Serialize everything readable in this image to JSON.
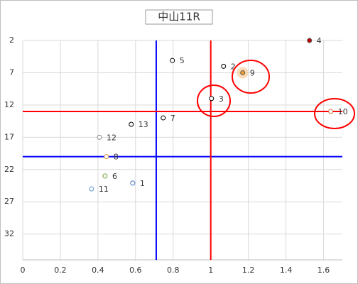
{
  "chart_data": {
    "type": "scatter",
    "title": "中山11R",
    "x": [
      1.525,
      0.796,
      1.068,
      1.17,
      1.004,
      1.638,
      0.747,
      0.577,
      0.408,
      0.445,
      0.438,
      0.585,
      0.366
    ],
    "y": [
      2,
      5.1,
      6,
      7,
      11,
      13,
      14,
      15,
      17,
      20,
      23,
      24.1,
      25
    ],
    "labels": [
      "4",
      "5",
      "2",
      "9",
      "3",
      "10",
      "7",
      "13",
      "12",
      "8",
      "6",
      "1",
      "11"
    ],
    "colors": [
      "#c00000",
      "#000000",
      "#000000",
      "#f0a030",
      "#000000",
      "#e07040",
      "#000000",
      "#000000",
      "#808080",
      "#e09040",
      "#70a030",
      "#4472c4",
      "#5b9bd5"
    ],
    "filled": [
      true,
      false,
      false,
      true,
      false,
      false,
      false,
      false,
      false,
      false,
      false,
      false,
      false
    ],
    "xlim": [
      0,
      1.7
    ],
    "xticks": [
      0,
      0.2,
      0.4,
      0.6,
      0.8,
      1,
      1.2,
      1.4,
      1.6
    ],
    "ylim": [
      36,
      2
    ],
    "yticks": [
      2,
      7,
      12,
      17,
      22,
      27,
      32
    ],
    "grid": true,
    "reference_lines": [
      {
        "axis": "x",
        "value": 0.71,
        "color": "#0000ff"
      },
      {
        "axis": "y",
        "value": 20,
        "color": "#0000ff"
      },
      {
        "axis": "x",
        "value": 1,
        "color": "#ff0000"
      },
      {
        "axis": "y",
        "value": 13,
        "color": "#ff0000"
      }
    ]
  }
}
